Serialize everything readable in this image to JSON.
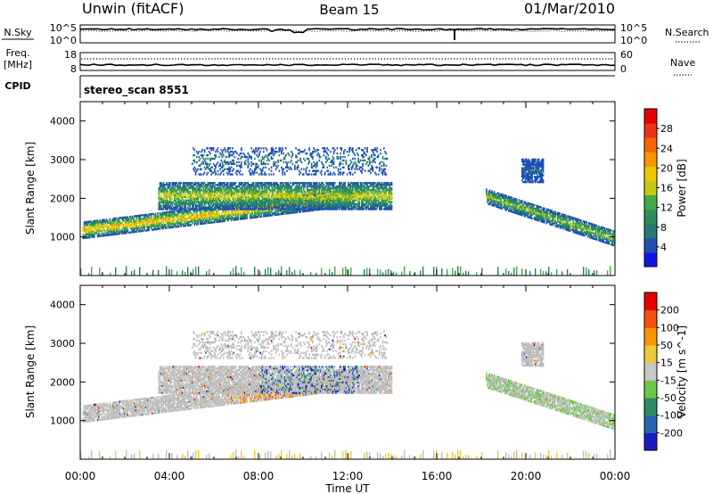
{
  "header": {
    "station": "Unwin (fitACF)",
    "beam": "Beam 15",
    "date": "01/Mar/2010"
  },
  "strips": {
    "nsky": {
      "label": "N.Sky",
      "right_label": "N.Search",
      "left_ticks": [
        "10^5",
        "10^0"
      ],
      "right_ticks": [
        "10^5",
        "10^0"
      ]
    },
    "freq": {
      "label_line1": "Freq.",
      "label_line2": "[MHz]",
      "right_label": "Nave",
      "left_ticks": [
        "18",
        "8"
      ],
      "right_ticks": [
        "60",
        "0"
      ]
    },
    "cpid": {
      "label": "CPID",
      "program": "stereo_scan 8551"
    }
  },
  "chart_data": [
    {
      "type": "heatmap",
      "title": "",
      "xlabel": "",
      "ylabel": "Slant Range [km]",
      "x_range_hours": [
        0,
        24
      ],
      "ylim": [
        0,
        4500
      ],
      "y_ticks": [
        1000,
        2000,
        3000,
        4000
      ],
      "colorbar": {
        "label": "Power [dB]",
        "ticks": [
          4,
          8,
          12,
          16,
          20,
          24,
          28
        ],
        "colors": [
          "#1414e6",
          "#1e50b4",
          "#287878",
          "#2f8c5a",
          "#46aa46",
          "#c8c814",
          "#f0c800",
          "#fa9600",
          "#fa6400",
          "#f03214",
          "#e60000"
        ]
      },
      "echo_regions": [
        {
          "name": "main band",
          "t_start": 0.1,
          "t_end": 12.2,
          "range_start_km": 950,
          "range_end_km": 1350,
          "slope_km_per_h": 70,
          "peak_power_db": 24
        },
        {
          "name": "upper band",
          "t_start": 3.5,
          "t_end": 14.0,
          "range_start_km": 1700,
          "range_end_km": 2400,
          "peak_power_db": 20
        },
        {
          "name": "sparse high",
          "t_start": 5.0,
          "t_end": 13.8,
          "range_start_km": 2600,
          "range_end_km": 3300,
          "peak_power_db": 10
        },
        {
          "name": "evening band",
          "t_start": 18.2,
          "t_end": 24.0,
          "range_start_km": 2100,
          "range_end_km": 1000,
          "peak_power_db": 18
        },
        {
          "name": "evening patch",
          "t_start": 19.8,
          "t_end": 20.8,
          "range_start_km": 2400,
          "range_end_km": 3000,
          "peak_power_db": 8
        }
      ]
    },
    {
      "type": "heatmap",
      "title": "",
      "xlabel": "Time UT",
      "ylabel": "Slant Range [km]",
      "x_range_hours": [
        0,
        24
      ],
      "x_ticks": [
        "00:00",
        "04:00",
        "08:00",
        "12:00",
        "16:00",
        "20:00",
        "00:00"
      ],
      "ylim": [
        0,
        4500
      ],
      "y_ticks": [
        1000,
        2000,
        3000,
        4000
      ],
      "colorbar": {
        "label": "Velocity [m s^-1]",
        "ticks": [
          200,
          100,
          50,
          15,
          -15,
          -50,
          -100,
          -200
        ],
        "colors": [
          "#1a1ac8",
          "#2864b4",
          "#2d8c64",
          "#6ec846",
          "#c8c8c8",
          "#f0c83c",
          "#fa9600",
          "#fa5014",
          "#e60000"
        ]
      },
      "ground_scatter_color": "#bebebe"
    }
  ]
}
